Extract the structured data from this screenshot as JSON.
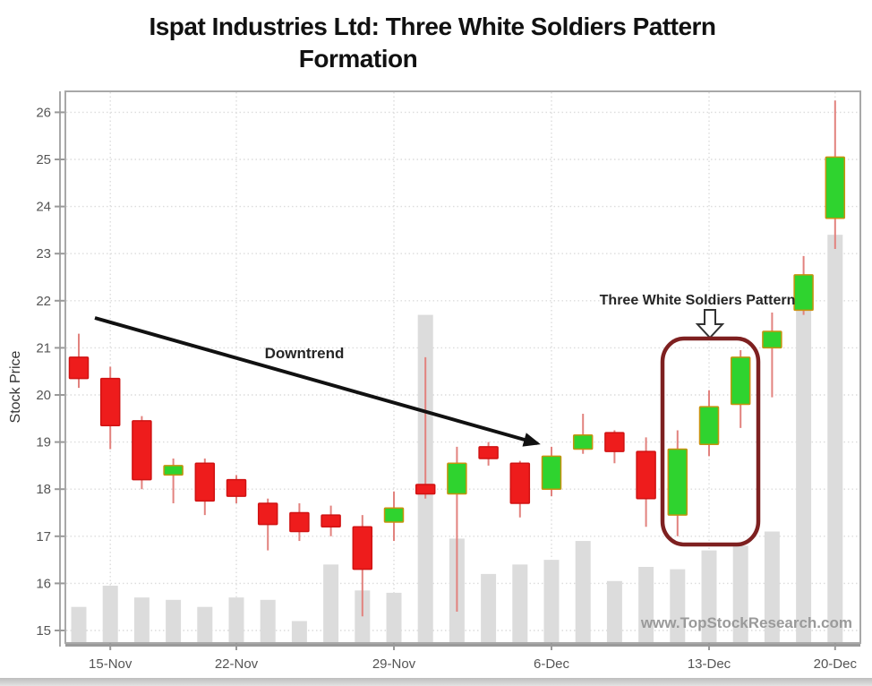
{
  "title": {
    "line1": "Ispat Industries Ltd: Three White Soldiers Pattern",
    "line2": "Formation"
  },
  "y_axis": {
    "label": "Stock Price",
    "ticks": [
      26,
      25,
      24,
      23,
      22,
      21,
      20,
      19,
      18,
      17,
      16,
      15
    ]
  },
  "x_axis": {
    "ticks": [
      {
        "label": "15-Nov",
        "candle": 2
      },
      {
        "label": "22-Nov",
        "candle": 6
      },
      {
        "label": "29-Nov",
        "candle": 11
      },
      {
        "label": "6-Dec",
        "candle": 16
      },
      {
        "label": "13-Dec",
        "candle": 21
      },
      {
        "label": "20-Dec",
        "candle": 25
      }
    ]
  },
  "annotations": {
    "downtrend_label": "Downtrend",
    "three_white_soldiers_label": "Three White Soldiers Pattern"
  },
  "watermark": "www.TopStockResearch.com",
  "colors": {
    "up_fill": "#2fd32f",
    "up_border": "#c8920f",
    "down_fill": "#ee1c1c",
    "down_border": "#d01212",
    "wick": "#e2827e",
    "volume": "#dcdcdc",
    "grid": "#dcdcdc",
    "frame": "#a8a8a8",
    "axis_line": "#9a9a9a",
    "highlight_box": "#7e2020",
    "annotation_text": "#262626",
    "watermark_text": "#9a9a9a",
    "axis_text": "#555555",
    "title_text": "#111111",
    "trend_arrow": "#111111"
  },
  "chart_data": {
    "type": "candlestick",
    "title": "Ispat Industries Ltd: Three White Soldiers Pattern Formation",
    "xlabel": "",
    "ylabel": "Stock Price",
    "ylim": [
      14.8,
      26.4
    ],
    "y_ticks": [
      15,
      16,
      17,
      18,
      19,
      20,
      21,
      22,
      23,
      24,
      25,
      26
    ],
    "x_tick_labels": [
      "15-Nov",
      "22-Nov",
      "29-Nov",
      "6-Dec",
      "13-Dec",
      "20-Dec"
    ],
    "grid": true,
    "volume_overlay_units": "price-axis equivalent of bar tops",
    "candles": [
      {
        "open": 20.8,
        "high": 21.3,
        "low": 20.15,
        "close": 20.35,
        "color": "red",
        "volume_top": 15.5
      },
      {
        "open": 20.35,
        "high": 20.6,
        "low": 18.85,
        "close": 19.35,
        "color": "red",
        "volume_top": 15.95
      },
      {
        "open": 19.45,
        "high": 19.55,
        "low": 18.0,
        "close": 18.2,
        "color": "red",
        "volume_top": 15.7
      },
      {
        "open": 18.3,
        "high": 18.65,
        "low": 17.7,
        "close": 18.5,
        "color": "green",
        "volume_top": 15.65
      },
      {
        "open": 18.55,
        "high": 18.65,
        "low": 17.45,
        "close": 17.75,
        "color": "red",
        "volume_top": 15.5
      },
      {
        "open": 18.2,
        "high": 18.3,
        "low": 17.7,
        "close": 17.85,
        "color": "red",
        "volume_top": 15.7
      },
      {
        "open": 17.7,
        "high": 17.8,
        "low": 16.7,
        "close": 17.25,
        "color": "red",
        "volume_top": 15.65
      },
      {
        "open": 17.5,
        "high": 17.7,
        "low": 16.9,
        "close": 17.1,
        "color": "red",
        "volume_top": 15.2
      },
      {
        "open": 17.45,
        "high": 17.65,
        "low": 17.0,
        "close": 17.2,
        "color": "red",
        "volume_top": 16.4
      },
      {
        "open": 17.2,
        "high": 17.45,
        "low": 15.3,
        "close": 16.3,
        "color": "red",
        "volume_top": 15.85
      },
      {
        "open": 17.3,
        "high": 17.95,
        "low": 16.9,
        "close": 17.6,
        "color": "green",
        "volume_top": 15.8
      },
      {
        "open": 18.1,
        "high": 20.8,
        "low": 17.8,
        "close": 17.9,
        "color": "red",
        "volume_top": 21.7
      },
      {
        "open": 17.9,
        "high": 18.9,
        "low": 15.4,
        "close": 18.55,
        "color": "green",
        "volume_top": 16.95
      },
      {
        "open": 18.9,
        "high": 19.0,
        "low": 18.5,
        "close": 18.65,
        "color": "red",
        "volume_top": 16.2
      },
      {
        "open": 18.55,
        "high": 18.6,
        "low": 17.4,
        "close": 17.7,
        "color": "red",
        "volume_top": 16.4
      },
      {
        "open": 18.0,
        "high": 18.9,
        "low": 17.85,
        "close": 18.7,
        "color": "green",
        "volume_top": 16.5
      },
      {
        "open": 18.85,
        "high": 19.6,
        "low": 18.75,
        "close": 19.15,
        "color": "green",
        "volume_top": 16.9
      },
      {
        "open": 19.2,
        "high": 19.25,
        "low": 18.55,
        "close": 18.8,
        "color": "red",
        "volume_top": 16.05
      },
      {
        "open": 18.8,
        "high": 19.1,
        "low": 17.2,
        "close": 17.8,
        "color": "red",
        "volume_top": 16.35
      },
      {
        "open": 17.45,
        "high": 19.25,
        "low": 17.0,
        "close": 18.85,
        "color": "green",
        "volume_top": 16.3
      },
      {
        "open": 18.95,
        "high": 20.1,
        "low": 18.7,
        "close": 19.75,
        "color": "green",
        "volume_top": 16.7
      },
      {
        "open": 19.8,
        "high": 20.95,
        "low": 19.3,
        "close": 20.8,
        "color": "green",
        "volume_top": 16.8
      },
      {
        "open": 21.0,
        "high": 21.75,
        "low": 19.95,
        "close": 21.35,
        "color": "green",
        "volume_top": 17.1
      },
      {
        "open": 21.8,
        "high": 22.95,
        "low": 21.7,
        "close": 22.55,
        "color": "green",
        "volume_top": 21.8
      },
      {
        "open": 23.75,
        "high": 26.25,
        "low": 23.1,
        "close": 25.05,
        "color": "green",
        "volume_top": 23.4
      }
    ],
    "highlighted_candles": [
      20,
      21,
      22
    ],
    "annotations": [
      {
        "text": "Downtrend",
        "type": "trend-arrow-label"
      },
      {
        "text": "Three White Soldiers Pattern",
        "type": "pattern-label"
      }
    ],
    "legend_position": "none"
  }
}
